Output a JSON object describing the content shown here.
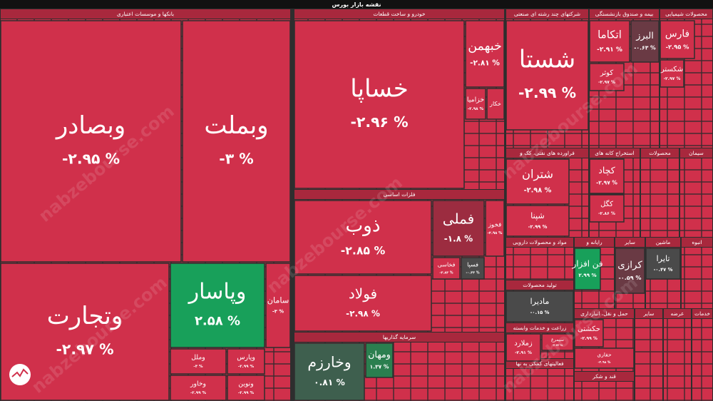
{
  "title": "نقشه بازار بورس",
  "watermark": "nabzebourse.com",
  "sectors": [
    {
      "name": "بانکها و موسسات اعتباری"
    },
    {
      "name": "خودرو و ساخت قطعات"
    },
    {
      "name": "فلزات اساسی"
    },
    {
      "name": "سرمایه گذاریها"
    },
    {
      "name": "شرکتهای چند رشته ای صنعتی"
    },
    {
      "name": "بیمه و صندوق بازنشستگی"
    },
    {
      "name": "محصولات شیمیایی"
    },
    {
      "name": "فراورده های نفتی، کک و"
    },
    {
      "name": "استخراج کانه های"
    },
    {
      "name": "محصولات"
    },
    {
      "name": "سیمان"
    },
    {
      "name": "مواد و محصولات دارویی"
    },
    {
      "name": "رایانه و"
    },
    {
      "name": "سایر"
    },
    {
      "name": "ماشین"
    },
    {
      "name": "انبوه"
    },
    {
      "name": "تولید محصولات"
    },
    {
      "name": "زراعت و خدمات وابسته"
    },
    {
      "name": "حمل و نقل، انبارداری"
    },
    {
      "name": "سایر"
    },
    {
      "name": "عرضه"
    },
    {
      "name": "خدمات"
    },
    {
      "name": "فعالیتهای کمکی به نها"
    },
    {
      "name": "قند و شکر"
    }
  ],
  "tiles": [
    {
      "name": "وبصادر",
      "change": "-۲.۹۵ %",
      "color": "#d0304b"
    },
    {
      "name": "وبملت",
      "change": "-۳ %",
      "color": "#d0304b"
    },
    {
      "name": "وتجارت",
      "change": "-۲.۹۷ %",
      "color": "#d0304b"
    },
    {
      "name": "وپاسار",
      "change": "۲.۵۸ %",
      "color": "#18a05a"
    },
    {
      "name": "سامان",
      "change": "-۳ %",
      "color": "#d0304b"
    },
    {
      "name": "وملل",
      "change": "-۳ %",
      "color": "#d0304b"
    },
    {
      "name": "وپارس",
      "change": "-۲.۹۹ %",
      "color": "#d0304b"
    },
    {
      "name": "وخاور",
      "change": "-۲.۹۹ %",
      "color": "#d0304b"
    },
    {
      "name": "ونوین",
      "change": "-۲.۹۹ %",
      "color": "#d0304b"
    },
    {
      "name": "خساپا",
      "change": "-۲.۹۶ %",
      "color": "#d0304b"
    },
    {
      "name": "خبهمن",
      "change": "-۲.۸۱ %",
      "color": "#d0304b"
    },
    {
      "name": "خزامیا",
      "change": "-۲.۹۸ %",
      "color": "#d0304b"
    },
    {
      "name": "خکار",
      "color": "#d0304b"
    },
    {
      "name": "ذوب",
      "change": "-۲.۸۵ %",
      "color": "#d0304b"
    },
    {
      "name": "فملی",
      "change": "-۱.۸ %",
      "color": "#9c2c40"
    },
    {
      "name": "فخوز",
      "change": "-۲.۹۸ %",
      "color": "#d0304b"
    },
    {
      "name": "فولاد",
      "change": "-۲.۹۸ %",
      "color": "#d0304b"
    },
    {
      "name": "فخاسی",
      "change": "-۲.۸۴ %",
      "color": "#d0304b"
    },
    {
      "name": "فسپا",
      "change": "-۰.۳۳ %",
      "color": "#4a4a4a"
    },
    {
      "name": "وخارزم",
      "change": "۰.۸۱ %",
      "color": "#3e5f4e"
    },
    {
      "name": "ومهان",
      "change": "۱.۳۷ %",
      "color": "#2b7f4f"
    },
    {
      "name": "شستا",
      "change": "-۲.۹۹ %",
      "color": "#d0304b"
    },
    {
      "name": "اتکاما",
      "change": "-۲.۹۱ %",
      "color": "#d0304b"
    },
    {
      "name": "البرز",
      "change": "-۰.۶۳ %",
      "color": "#6a3a44"
    },
    {
      "name": "کوثر",
      "change": "-۲.۹۷ %",
      "color": "#d0304b"
    },
    {
      "name": "فارس",
      "change": "-۲.۹۵ %",
      "color": "#d0304b"
    },
    {
      "name": "شکستر",
      "change": "-۲.۹۷ %",
      "color": "#d0304b"
    },
    {
      "name": "شتران",
      "change": "-۲.۹۸ %",
      "color": "#d0304b"
    },
    {
      "name": "شپنا",
      "change": "-۲.۹۹ %",
      "color": "#d0304b"
    },
    {
      "name": "کچاد",
      "change": "-۲.۹۷ %",
      "color": "#d0304b"
    },
    {
      "name": "کگل",
      "change": "-۲.۸۶ %",
      "color": "#d0304b"
    },
    {
      "name": "فن افزار",
      "change": "۲.۹۹ %",
      "color": "#18a05a"
    },
    {
      "name": "کرازی",
      "change": "-۰.۵۹ %",
      "color": "#6a3a44"
    },
    {
      "name": "تایرا",
      "change": "-۰.۴۷ %",
      "color": "#4a4a4a"
    },
    {
      "name": "مادیرا",
      "change": "-۰.۱۵ %",
      "color": "#4a4a4a"
    },
    {
      "name": "زملارد",
      "change": "-۲.۹۱ %",
      "color": "#d0304b"
    },
    {
      "name": "سیمرغ",
      "change": "-۲.۷۳ %",
      "color": "#d0304b"
    },
    {
      "name": "حکشتی",
      "change": "-۲.۹۹ %",
      "color": "#d0304b"
    },
    {
      "name": "حفاری",
      "change": "-۲.۹۸ %",
      "color": "#d0304b"
    }
  ]
}
